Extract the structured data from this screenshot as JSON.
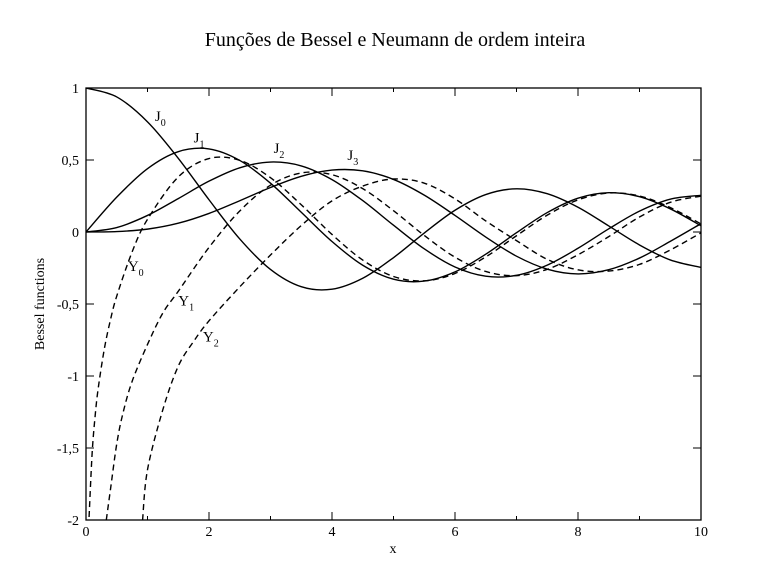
{
  "chart_data": {
    "type": "line",
    "title": "Funções de Bessel e Neumann de ordem inteira",
    "xlabel": "x",
    "ylabel": "Bessel functions",
    "xlim": [
      0,
      10
    ],
    "ylim": [
      -2,
      1
    ],
    "grid": false,
    "x_ticks": [
      "0",
      "2",
      "4",
      "6",
      "8",
      "10"
    ],
    "y_ticks": [
      "-2",
      "-1,5",
      "-1",
      "-0,5",
      "0",
      "0,5",
      "1"
    ],
    "series": [
      {
        "name": "J0",
        "label_main": "J",
        "label_sub": "0",
        "style": "solid",
        "x": [
          0,
          0.5,
          1,
          1.5,
          2,
          2.5,
          3,
          3.5,
          4,
          4.5,
          5,
          5.5,
          6,
          6.5,
          7,
          7.5,
          8,
          8.5,
          9,
          9.5,
          10
        ],
        "values": [
          1,
          0.938,
          0.765,
          0.512,
          0.224,
          -0.048,
          -0.26,
          -0.38,
          -0.397,
          -0.321,
          -0.178,
          -0.007,
          0.151,
          0.26,
          0.3,
          0.266,
          0.172,
          0.042,
          -0.09,
          -0.194,
          -0.246
        ]
      },
      {
        "name": "J1",
        "label_main": "J",
        "label_sub": "1",
        "style": "solid",
        "x": [
          0,
          0.5,
          1,
          1.5,
          2,
          2.5,
          3,
          3.5,
          4,
          4.5,
          5,
          5.5,
          6,
          6.5,
          7,
          7.5,
          8,
          8.5,
          9,
          9.5,
          10
        ],
        "values": [
          0,
          0.242,
          0.44,
          0.558,
          0.577,
          0.497,
          0.339,
          0.137,
          -0.066,
          -0.231,
          -0.328,
          -0.341,
          -0.277,
          -0.154,
          -0.005,
          0.135,
          0.235,
          0.273,
          0.245,
          0.161,
          0.043
        ]
      },
      {
        "name": "J2",
        "label_main": "J",
        "label_sub": "2",
        "style": "solid",
        "x": [
          0,
          0.5,
          1,
          1.5,
          2,
          2.5,
          3,
          3.5,
          4,
          4.5,
          5,
          5.5,
          6,
          6.5,
          7,
          7.5,
          8,
          8.5,
          9,
          9.5,
          10
        ],
        "values": [
          0,
          0.031,
          0.115,
          0.232,
          0.353,
          0.446,
          0.486,
          0.459,
          0.364,
          0.218,
          0.047,
          -0.117,
          -0.243,
          -0.307,
          -0.301,
          -0.23,
          -0.113,
          0.022,
          0.145,
          0.228,
          0.255
        ]
      },
      {
        "name": "J3",
        "label_main": "J",
        "label_sub": "3",
        "style": "solid",
        "x": [
          0,
          0.5,
          1,
          1.5,
          2,
          2.5,
          3,
          3.5,
          4,
          4.5,
          5,
          5.5,
          6,
          6.5,
          7,
          7.5,
          8,
          8.5,
          9,
          9.5,
          10
        ],
        "values": [
          0,
          0.003,
          0.02,
          0.061,
          0.129,
          0.217,
          0.309,
          0.387,
          0.43,
          0.425,
          0.365,
          0.256,
          0.115,
          -0.035,
          -0.168,
          -0.258,
          -0.291,
          -0.262,
          -0.181,
          -0.065,
          0.058
        ]
      },
      {
        "name": "Y0",
        "label_main": "Y",
        "label_sub": "0",
        "style": "dashed",
        "x": [
          0.05,
          0.1,
          0.15,
          0.2,
          0.3,
          0.4,
          0.5,
          0.75,
          1,
          1.5,
          2,
          2.5,
          3,
          3.5,
          4,
          4.5,
          5,
          5.5,
          6,
          6.5,
          7,
          7.5,
          8,
          8.5,
          9,
          9.5,
          10
        ],
        "values": [
          -1.979,
          -1.534,
          -1.271,
          -1.081,
          -0.807,
          -0.606,
          -0.445,
          -0.138,
          0.088,
          0.382,
          0.51,
          0.498,
          0.377,
          0.189,
          -0.017,
          -0.195,
          -0.309,
          -0.339,
          -0.288,
          -0.173,
          -0.026,
          0.117,
          0.223,
          0.271,
          0.25,
          0.17,
          0.056
        ]
      },
      {
        "name": "Y1",
        "label_main": "Y",
        "label_sub": "1",
        "style": "dashed",
        "x": [
          0.33,
          0.4,
          0.5,
          0.6,
          0.75,
          1,
          1.25,
          1.5,
          2,
          2.5,
          3,
          3.5,
          4,
          4.5,
          5,
          5.5,
          6,
          6.5,
          7,
          7.5,
          8,
          8.5,
          9,
          9.5,
          10
        ],
        "values": [
          -2.0,
          -1.781,
          -1.471,
          -1.26,
          -1.037,
          -0.781,
          -0.562,
          -0.412,
          -0.107,
          0.146,
          0.325,
          0.41,
          0.398,
          0.301,
          0.148,
          -0.024,
          -0.175,
          -0.274,
          -0.303,
          -0.259,
          -0.158,
          -0.032,
          0.104,
          0.206,
          0.249
        ]
      },
      {
        "name": "Y2",
        "label_main": "Y",
        "label_sub": "2",
        "style": "dashed",
        "x": [
          0.92,
          1,
          1.25,
          1.5,
          1.75,
          2,
          2.5,
          3,
          3.5,
          4,
          4.5,
          5,
          5.5,
          6,
          6.5,
          7,
          7.5,
          8,
          8.5,
          9,
          9.5,
          10
        ],
        "values": [
          -2.0,
          -1.651,
          -1.233,
          -0.932,
          -0.76,
          -0.617,
          -0.381,
          -0.16,
          0.045,
          0.216,
          0.319,
          0.368,
          0.339,
          0.23,
          0.077,
          -0.06,
          -0.19,
          -0.263,
          -0.271,
          -0.225,
          -0.125,
          -0.006
        ]
      }
    ]
  }
}
